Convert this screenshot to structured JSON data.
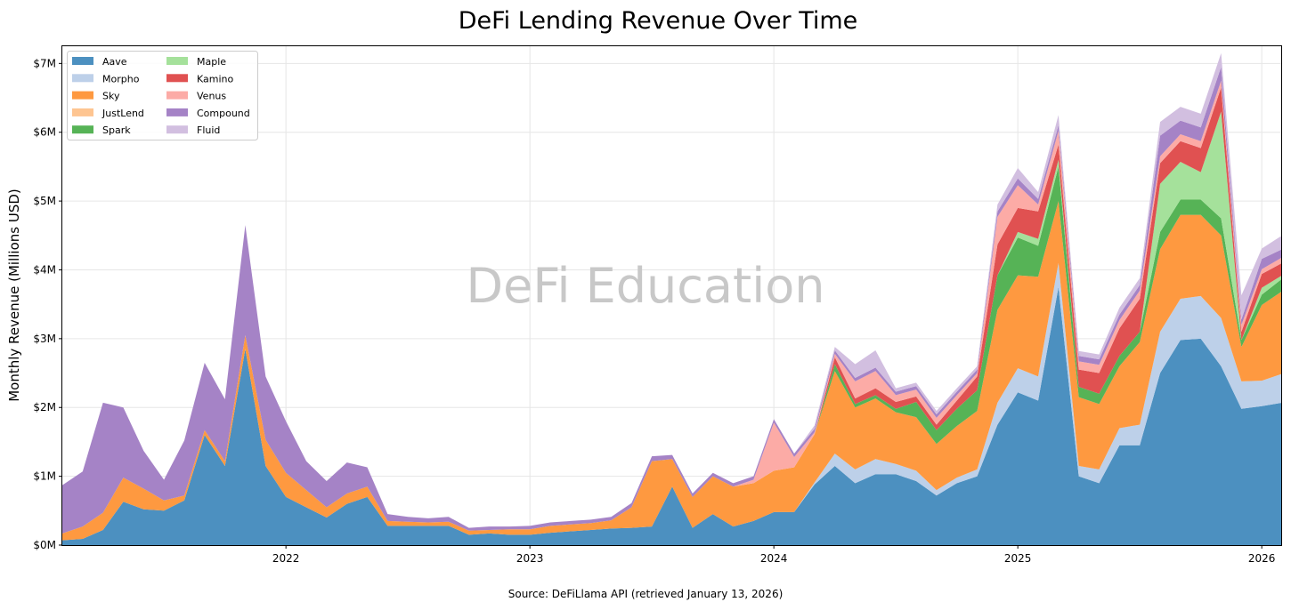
{
  "chart_data": {
    "type": "area",
    "stacked": true,
    "title": "DeFi Lending Revenue Over Time",
    "ylabel": "Monthly Revenue (Millions USD)",
    "xlabel": "",
    "source": "Source: DeFiLlama API (retrieved January 13, 2026)",
    "watermark": "DeFi Education",
    "xlim": [
      "2021-02",
      "2026-02"
    ],
    "ylim": [
      0,
      7.25
    ],
    "y_unit": "Millions USD",
    "grid": true,
    "legend_position": "top-left",
    "legend_columns": 2,
    "x_ticks": [
      "2022",
      "2023",
      "2024",
      "2025",
      "2026"
    ],
    "y_ticks": [
      "$0M",
      "$1M",
      "$2M",
      "$3M",
      "$4M",
      "$5M",
      "$6M",
      "$7M"
    ],
    "y_tick_values": [
      0,
      1,
      2,
      3,
      4,
      5,
      6,
      7
    ],
    "x": [
      "2021-02",
      "2021-03",
      "2021-04",
      "2021-05",
      "2021-06",
      "2021-07",
      "2021-08",
      "2021-09",
      "2021-10",
      "2021-11",
      "2021-12",
      "2022-01",
      "2022-02",
      "2022-03",
      "2022-04",
      "2022-05",
      "2022-06",
      "2022-07",
      "2022-08",
      "2022-09",
      "2022-10",
      "2022-11",
      "2022-12",
      "2023-01",
      "2023-02",
      "2023-03",
      "2023-04",
      "2023-05",
      "2023-06",
      "2023-07",
      "2023-08",
      "2023-09",
      "2023-10",
      "2023-11",
      "2023-12",
      "2024-01",
      "2024-02",
      "2024-03",
      "2024-04",
      "2024-05",
      "2024-06",
      "2024-07",
      "2024-08",
      "2024-09",
      "2024-10",
      "2024-11",
      "2024-12",
      "2025-01",
      "2025-02",
      "2025-03",
      "2025-04",
      "2025-05",
      "2025-06",
      "2025-07",
      "2025-08",
      "2025-09",
      "2025-10",
      "2025-11",
      "2025-12",
      "2026-01",
      "2026-02"
    ],
    "series": [
      {
        "name": "Aave",
        "color": "#4c90c0",
        "values": [
          0.07,
          0.09,
          0.22,
          0.63,
          0.52,
          0.5,
          0.65,
          1.6,
          1.15,
          2.85,
          1.15,
          0.7,
          0.55,
          0.4,
          0.6,
          0.7,
          0.28,
          0.28,
          0.28,
          0.28,
          0.15,
          0.17,
          0.15,
          0.15,
          0.18,
          0.2,
          0.22,
          0.24,
          0.25,
          0.27,
          0.85,
          0.25,
          0.45,
          0.27,
          0.35,
          0.48,
          0.48,
          0.88,
          1.15,
          0.9,
          1.03,
          1.03,
          0.93,
          0.72,
          0.9,
          1.0,
          1.75,
          2.22,
          2.1,
          3.75,
          1.0,
          0.9,
          1.45,
          1.45,
          2.5,
          2.98,
          3.0,
          2.6,
          1.98,
          2.02,
          2.07
        ]
      },
      {
        "name": "Morpho",
        "color": "#bdd0e9",
        "values": [
          0,
          0,
          0,
          0,
          0,
          0,
          0,
          0,
          0,
          0,
          0,
          0,
          0,
          0,
          0,
          0,
          0,
          0,
          0,
          0,
          0,
          0,
          0,
          0,
          0,
          0,
          0,
          0,
          0,
          0,
          0,
          0,
          0,
          0,
          0,
          0,
          0,
          0.03,
          0.18,
          0.2,
          0.22,
          0.15,
          0.15,
          0.08,
          0.08,
          0.1,
          0.32,
          0.35,
          0.35,
          0.35,
          0.15,
          0.2,
          0.25,
          0.3,
          0.6,
          0.6,
          0.62,
          0.7,
          0.4,
          0.37,
          0.42
        ]
      },
      {
        "name": "Sky",
        "color": "#fe9940",
        "values": [
          0.1,
          0.18,
          0.25,
          0.35,
          0.3,
          0.15,
          0.07,
          0.07,
          0.07,
          0.2,
          0.38,
          0.35,
          0.25,
          0.15,
          0.15,
          0.15,
          0.07,
          0.06,
          0.05,
          0.06,
          0.06,
          0.05,
          0.08,
          0.08,
          0.1,
          0.1,
          0.1,
          0.12,
          0.3,
          0.95,
          0.4,
          0.45,
          0.55,
          0.58,
          0.55,
          0.6,
          0.65,
          0.7,
          1.2,
          0.9,
          0.88,
          0.75,
          0.78,
          0.67,
          0.75,
          0.85,
          1.35,
          1.35,
          1.45,
          0.9,
          1.0,
          0.95,
          0.9,
          1.2,
          1.2,
          1.22,
          1.18,
          1.2,
          0.5,
          1.1,
          1.2
        ]
      },
      {
        "name": "JustLend",
        "color": "#fec591",
        "values": [
          0,
          0,
          0,
          0,
          0,
          0,
          0,
          0,
          0,
          0,
          0,
          0,
          0,
          0,
          0,
          0,
          0,
          0,
          0,
          0,
          0,
          0,
          0,
          0,
          0,
          0,
          0,
          0,
          0,
          0,
          0,
          0,
          0,
          0,
          0,
          0,
          0,
          0,
          0,
          0,
          0,
          0,
          0,
          0,
          0,
          0,
          0,
          0,
          0,
          0,
          0,
          0,
          0,
          0,
          0,
          0,
          0,
          0,
          0,
          0,
          0
        ]
      },
      {
        "name": "Spark",
        "color": "#56b356",
        "values": [
          0,
          0,
          0,
          0,
          0,
          0,
          0,
          0,
          0,
          0,
          0,
          0,
          0,
          0,
          0,
          0,
          0,
          0,
          0,
          0,
          0,
          0,
          0,
          0,
          0,
          0,
          0,
          0,
          0,
          0,
          0,
          0,
          0,
          0,
          0,
          0,
          0,
          0,
          0.1,
          0.05,
          0.05,
          0.05,
          0.22,
          0.2,
          0.25,
          0.3,
          0.5,
          0.55,
          0.45,
          0.5,
          0.15,
          0.15,
          0.15,
          0.15,
          0.25,
          0.22,
          0.22,
          0.25,
          0.1,
          0.15,
          0.18
        ]
      },
      {
        "name": "Maple",
        "color": "#a5e19b",
        "values": [
          0,
          0,
          0,
          0,
          0,
          0,
          0,
          0,
          0,
          0,
          0,
          0,
          0,
          0,
          0,
          0,
          0,
          0,
          0,
          0,
          0,
          0,
          0,
          0,
          0,
          0,
          0,
          0,
          0,
          0,
          0,
          0,
          0,
          0,
          0,
          0,
          0,
          0,
          0,
          0,
          0,
          0,
          0,
          0,
          0,
          0,
          0,
          0.08,
          0.1,
          0.1,
          0,
          0,
          0,
          0,
          0.7,
          0.55,
          0.4,
          1.55,
          0,
          0.1,
          0.05
        ]
      },
      {
        "name": "Kamino",
        "color": "#e05151",
        "values": [
          0,
          0,
          0,
          0,
          0,
          0,
          0,
          0,
          0,
          0,
          0,
          0,
          0,
          0,
          0,
          0,
          0,
          0,
          0,
          0,
          0,
          0,
          0,
          0,
          0,
          0,
          0,
          0,
          0,
          0,
          0,
          0,
          0,
          0,
          0,
          0,
          0,
          0,
          0.1,
          0.08,
          0.1,
          0.1,
          0.08,
          0.08,
          0.12,
          0.2,
          0.45,
          0.35,
          0.4,
          0.22,
          0.25,
          0.3,
          0.4,
          0.48,
          0.3,
          0.3,
          0.35,
          0.35,
          0.12,
          0.2,
          0.18
        ]
      },
      {
        "name": "Venus",
        "color": "#fcaba6",
        "values": [
          0,
          0,
          0,
          0,
          0,
          0,
          0,
          0,
          0,
          0,
          0,
          0,
          0,
          0,
          0,
          0,
          0,
          0,
          0,
          0,
          0,
          0,
          0,
          0,
          0,
          0,
          0,
          0,
          0,
          0,
          0,
          0,
          0,
          0,
          0.05,
          0.7,
          0.15,
          0.03,
          0.05,
          0.25,
          0.25,
          0.1,
          0.1,
          0.1,
          0.08,
          0.05,
          0.4,
          0.33,
          0.1,
          0.2,
          0.12,
          0.12,
          0.12,
          0.12,
          0.1,
          0.1,
          0.1,
          0.1,
          0.1,
          0.07,
          0.08
        ]
      },
      {
        "name": "Compound",
        "color": "#a583c6",
        "values": [
          0.7,
          0.8,
          1.6,
          1.02,
          0.55,
          0.3,
          0.8,
          0.98,
          0.9,
          1.6,
          0.92,
          0.75,
          0.42,
          0.38,
          0.45,
          0.28,
          0.1,
          0.07,
          0.06,
          0.07,
          0.04,
          0.05,
          0.04,
          0.05,
          0.05,
          0.05,
          0.05,
          0.05,
          0.06,
          0.07,
          0.06,
          0.05,
          0.05,
          0.05,
          0.05,
          0.05,
          0.05,
          0.05,
          0.05,
          0.05,
          0.05,
          0.05,
          0.05,
          0.05,
          0.05,
          0.05,
          0.08,
          0.1,
          0.08,
          0.08,
          0.08,
          0.08,
          0.08,
          0.08,
          0.3,
          0.2,
          0.2,
          0.2,
          0.08,
          0.15,
          0.12
        ]
      },
      {
        "name": "Fluid",
        "color": "#d2bfe0",
        "values": [
          0,
          0,
          0,
          0,
          0,
          0,
          0,
          0,
          0,
          0,
          0,
          0,
          0,
          0,
          0,
          0,
          0,
          0,
          0,
          0,
          0,
          0,
          0,
          0,
          0,
          0,
          0,
          0,
          0,
          0,
          0,
          0,
          0,
          0,
          0,
          0,
          0,
          0.05,
          0.05,
          0.2,
          0.25,
          0.05,
          0.05,
          0.05,
          0.05,
          0.05,
          0.1,
          0.15,
          0.1,
          0.15,
          0.07,
          0.07,
          0.1,
          0.1,
          0.2,
          0.2,
          0.2,
          0.2,
          0.35,
          0.15,
          0.2
        ]
      }
    ]
  }
}
